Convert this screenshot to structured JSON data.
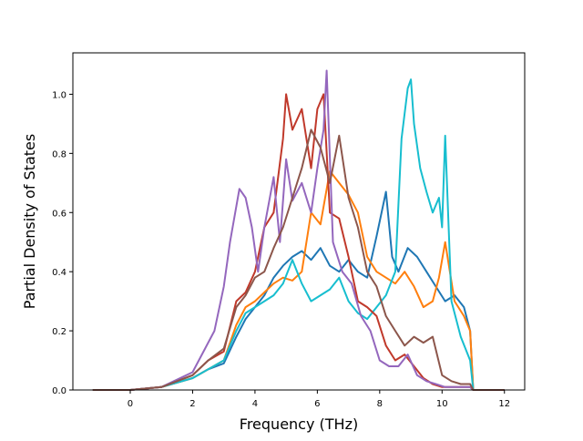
{
  "chart_data": {
    "type": "line",
    "title": "",
    "xlabel": "Frequency (THz)",
    "ylabel": "Partial Density of States",
    "xlim": [
      -1.84,
      12.65
    ],
    "ylim": [
      0.0,
      1.14
    ],
    "xticks": [
      "0",
      "2",
      "4",
      "6",
      "8",
      "10",
      "12"
    ],
    "yticks": [
      "0.0",
      "0.2",
      "0.4",
      "0.6",
      "0.8",
      "1.0"
    ],
    "grid": false,
    "legend": "none",
    "series": [
      {
        "color": "#1f77b4",
        "x": [
          -1.2,
          0,
          1,
          2,
          2.5,
          3,
          3.4,
          3.7,
          4.0,
          4.3,
          4.6,
          4.9,
          5.2,
          5.5,
          5.8,
          6.1,
          6.4,
          6.7,
          7.0,
          7.3,
          7.6,
          7.9,
          8.2,
          8.4,
          8.6,
          8.9,
          9.2,
          9.5,
          9.8,
          10.1,
          10.4,
          10.7,
          10.9,
          11.0,
          12.0
        ],
        "y": [
          0,
          0,
          0.01,
          0.04,
          0.07,
          0.09,
          0.18,
          0.24,
          0.28,
          0.32,
          0.38,
          0.42,
          0.45,
          0.47,
          0.44,
          0.48,
          0.42,
          0.4,
          0.44,
          0.4,
          0.38,
          0.52,
          0.67,
          0.45,
          0.4,
          0.48,
          0.45,
          0.4,
          0.35,
          0.3,
          0.32,
          0.28,
          0.2,
          0.0,
          0.0
        ]
      },
      {
        "color": "#ff7f0e",
        "x": [
          -1.2,
          0,
          1,
          2,
          2.5,
          3,
          3.4,
          3.7,
          4.0,
          4.3,
          4.6,
          4.9,
          5.2,
          5.5,
          5.8,
          6.1,
          6.4,
          6.7,
          7.0,
          7.3,
          7.6,
          7.9,
          8.2,
          8.5,
          8.8,
          9.1,
          9.4,
          9.7,
          9.9,
          10.1,
          10.4,
          10.7,
          10.9,
          11.0,
          12.0
        ],
        "y": [
          0,
          0,
          0.01,
          0.04,
          0.07,
          0.1,
          0.22,
          0.28,
          0.3,
          0.33,
          0.36,
          0.38,
          0.37,
          0.4,
          0.6,
          0.56,
          0.74,
          0.7,
          0.66,
          0.6,
          0.45,
          0.4,
          0.38,
          0.36,
          0.4,
          0.35,
          0.28,
          0.3,
          0.38,
          0.5,
          0.3,
          0.25,
          0.2,
          0.0,
          0.0
        ]
      },
      {
        "color": "#17becf",
        "x": [
          -1.2,
          0,
          1,
          2,
          2.5,
          3,
          3.4,
          3.7,
          4.0,
          4.3,
          4.6,
          4.9,
          5.2,
          5.5,
          5.8,
          6.1,
          6.4,
          6.7,
          7.0,
          7.3,
          7.6,
          7.9,
          8.2,
          8.5,
          8.7,
          8.9,
          9.0,
          9.1,
          9.3,
          9.5,
          9.7,
          9.9,
          10.0,
          10.1,
          10.3,
          10.6,
          10.9,
          11.0,
          12.0
        ],
        "y": [
          0,
          0,
          0.01,
          0.04,
          0.07,
          0.1,
          0.2,
          0.26,
          0.28,
          0.3,
          0.32,
          0.36,
          0.44,
          0.36,
          0.3,
          0.32,
          0.34,
          0.38,
          0.3,
          0.26,
          0.24,
          0.28,
          0.32,
          0.4,
          0.85,
          1.02,
          1.05,
          0.9,
          0.75,
          0.67,
          0.6,
          0.65,
          0.55,
          0.86,
          0.3,
          0.18,
          0.1,
          0.0,
          0.0
        ]
      },
      {
        "color": "#c0392b",
        "x": [
          -1.2,
          0,
          1,
          2,
          2.5,
          3,
          3.4,
          3.7,
          4.0,
          4.3,
          4.6,
          4.9,
          5.0,
          5.2,
          5.5,
          5.8,
          6.0,
          6.2,
          6.4,
          6.7,
          7.0,
          7.3,
          7.6,
          7.9,
          8.2,
          8.5,
          8.8,
          9.1,
          9.4,
          9.7,
          10.0,
          10.3,
          10.6,
          10.9,
          11.0,
          12.0
        ],
        "y": [
          0,
          0,
          0.01,
          0.05,
          0.1,
          0.13,
          0.3,
          0.33,
          0.4,
          0.55,
          0.6,
          0.85,
          1.0,
          0.88,
          0.95,
          0.75,
          0.95,
          1.0,
          0.6,
          0.58,
          0.45,
          0.3,
          0.28,
          0.25,
          0.15,
          0.1,
          0.12,
          0.08,
          0.04,
          0.02,
          0.01,
          0.01,
          0.01,
          0.01,
          0.0,
          0.0
        ]
      },
      {
        "color": "#9467bd",
        "x": [
          -1.2,
          0,
          1,
          2,
          2.4,
          2.7,
          3.0,
          3.2,
          3.5,
          3.7,
          3.9,
          4.1,
          4.3,
          4.6,
          4.8,
          5.0,
          5.2,
          5.5,
          5.8,
          6.0,
          6.2,
          6.3,
          6.5,
          6.8,
          7.1,
          7.4,
          7.7,
          8.0,
          8.3,
          8.6,
          8.9,
          9.2,
          9.5,
          9.8,
          10.1,
          10.4,
          10.7,
          10.9,
          11.0,
          12.0
        ],
        "y": [
          0,
          0,
          0.01,
          0.06,
          0.14,
          0.2,
          0.35,
          0.5,
          0.68,
          0.65,
          0.55,
          0.4,
          0.55,
          0.72,
          0.5,
          0.78,
          0.64,
          0.7,
          0.6,
          0.75,
          0.88,
          1.08,
          0.5,
          0.4,
          0.36,
          0.25,
          0.2,
          0.1,
          0.08,
          0.08,
          0.12,
          0.05,
          0.03,
          0.02,
          0.01,
          0.01,
          0.01,
          0.01,
          0.0,
          0.0
        ]
      },
      {
        "color": "#8c564b",
        "x": [
          -1.2,
          0,
          1,
          2,
          2.5,
          3,
          3.4,
          3.7,
          4.0,
          4.3,
          4.6,
          4.9,
          5.2,
          5.5,
          5.8,
          6.1,
          6.4,
          6.7,
          7.0,
          7.3,
          7.6,
          7.9,
          8.2,
          8.5,
          8.8,
          9.1,
          9.4,
          9.7,
          10.0,
          10.3,
          10.6,
          10.9,
          11.0,
          12.0
        ],
        "y": [
          0,
          0,
          0.01,
          0.05,
          0.1,
          0.14,
          0.28,
          0.32,
          0.38,
          0.4,
          0.48,
          0.55,
          0.65,
          0.75,
          0.88,
          0.82,
          0.7,
          0.86,
          0.65,
          0.55,
          0.4,
          0.35,
          0.25,
          0.2,
          0.15,
          0.18,
          0.16,
          0.18,
          0.05,
          0.03,
          0.02,
          0.02,
          0.0,
          0.0
        ]
      }
    ]
  }
}
